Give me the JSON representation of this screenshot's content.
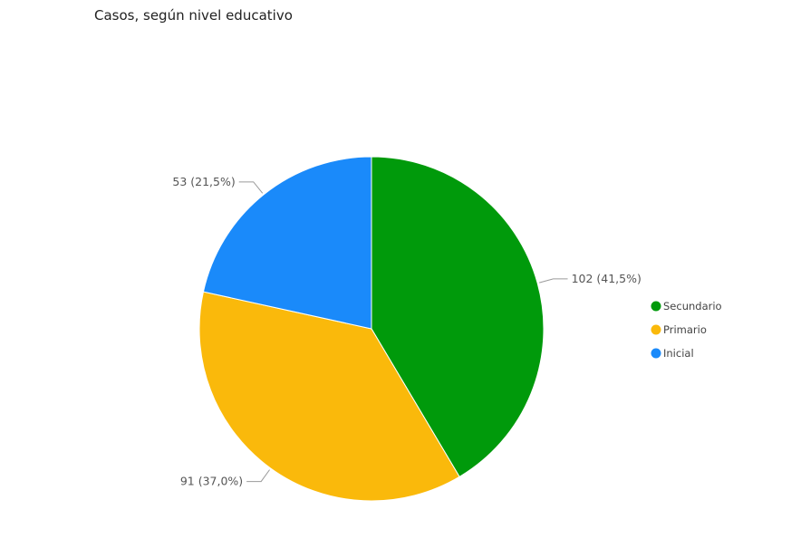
{
  "chart_data": {
    "type": "pie",
    "title": "Casos, según nivel educativo",
    "slices": [
      {
        "name": "Secundario",
        "value": 102,
        "label": "102 (41,5%)",
        "color": "#009a0b"
      },
      {
        "name": "Primario",
        "value": 91,
        "label": "91 (37,0%)",
        "color": "#fab90b"
      },
      {
        "name": "Inicial",
        "value": 53,
        "label": "53 (21,5%)",
        "color": "#1a8afa"
      }
    ],
    "legend_position": "right"
  }
}
